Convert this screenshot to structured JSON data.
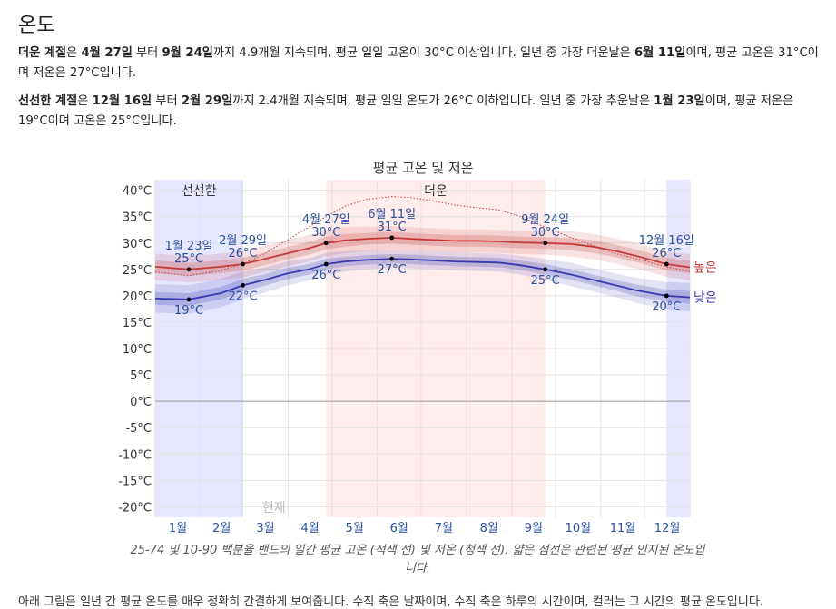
{
  "section": {
    "title": "온도",
    "hot_season": {
      "label": "더운 계절",
      "t1": "은 ",
      "start": "4월 27일",
      "t2": " 부터 ",
      "end": "9월 24일",
      "t3": "까지 4.9개월 지속되며, 평균 일일 고온이 30°C 이상입니다. 일년 중 가장 더운날은 ",
      "peak": "6월 11일",
      "t4": "이며, 평균 고온은 31°C이며 저온은 27°C입니다."
    },
    "cool_season": {
      "label": "선선한 계절",
      "t1": "은 ",
      "start": "12월 16일",
      "t2": " 부터 ",
      "end": "2월 29일",
      "t3": "까지 2.4개월 지속되며, 평균 일일 온도가 26°C 이하입니다. 일년 중 가장 추운날은 ",
      "peak": "1월 23일",
      "t4": "이며, 평균 저온은 19°C이며 고온은 25°C입니다."
    }
  },
  "chart_data": {
    "type": "line",
    "title": "평균 고온 및 저온",
    "x_unit": "day of year",
    "x_tick_labels": [
      "1월",
      "2월",
      "3월",
      "4월",
      "5월",
      "6월",
      "7월",
      "8월",
      "9월",
      "10월",
      "11월",
      "12월"
    ],
    "ylim": [
      -22,
      42
    ],
    "y_ticks": [
      40,
      35,
      30,
      25,
      20,
      15,
      10,
      5,
      0,
      -5,
      -10,
      -15,
      -20
    ],
    "y_tick_suffix": "°C",
    "grid": true,
    "bands": [
      {
        "name": "선선한",
        "ranges": [
          [
            0,
            60
          ],
          [
            350,
            366
          ]
        ],
        "color": "#e6e6ff"
      },
      {
        "name": "더운",
        "ranges": [
          [
            117,
            267
          ]
        ],
        "color": "#ffecec"
      }
    ],
    "series": [
      {
        "name": "높은",
        "color": "#c53a3a",
        "x": [
          0,
          23,
          45,
          60,
          75,
          90,
          105,
          117,
          130,
          145,
          162,
          175,
          190,
          205,
          220,
          235,
          250,
          267,
          285,
          300,
          315,
          330,
          350,
          366
        ],
        "values": [
          25.5,
          25,
          25.5,
          26,
          27,
          28,
          29,
          30,
          30.5,
          30.8,
          31,
          30.8,
          30.6,
          30.4,
          30.4,
          30.3,
          30.1,
          30,
          29.8,
          29.3,
          28.5,
          27.5,
          26,
          25.4
        ],
        "p25": [
          24.3,
          23.8,
          24.3,
          24.8,
          25.8,
          26.8,
          27.8,
          28.8,
          29.3,
          29.7,
          29.9,
          29.7,
          29.5,
          29.3,
          29.3,
          29.2,
          29.0,
          28.9,
          28.6,
          28.1,
          27.3,
          26.3,
          24.8,
          24.2
        ],
        "p75": [
          26.7,
          26.2,
          26.7,
          27.2,
          28.2,
          29.2,
          30.2,
          31.2,
          31.7,
          31.9,
          32.1,
          31.9,
          31.7,
          31.5,
          31.5,
          31.4,
          31.2,
          31.1,
          31.0,
          30.5,
          29.7,
          28.7,
          27.2,
          26.6
        ],
        "p10": [
          23.0,
          22.5,
          23.0,
          23.5,
          24.5,
          25.5,
          26.5,
          27.5,
          28.1,
          28.5,
          28.8,
          28.6,
          28.4,
          28.2,
          28.2,
          28.1,
          27.9,
          27.8,
          27.4,
          26.9,
          26.1,
          25.1,
          23.6,
          22.9
        ],
        "p90": [
          28.0,
          27.5,
          28.0,
          28.5,
          29.5,
          30.5,
          31.5,
          32.5,
          33.0,
          33.1,
          33.2,
          33.0,
          32.8,
          32.6,
          32.6,
          32.5,
          32.3,
          32.2,
          32.2,
          31.7,
          30.9,
          29.9,
          28.4,
          27.9
        ]
      },
      {
        "name": "낮은",
        "color": "#3a3ab0",
        "x": [
          0,
          23,
          45,
          60,
          75,
          90,
          105,
          117,
          130,
          145,
          162,
          175,
          190,
          205,
          220,
          235,
          250,
          267,
          285,
          300,
          315,
          330,
          350,
          366
        ],
        "values": [
          19.5,
          19.3,
          20.5,
          22,
          23,
          24.2,
          25,
          26,
          26.5,
          26.8,
          27,
          26.9,
          26.7,
          26.5,
          26.4,
          26.3,
          25.8,
          25,
          24,
          23,
          22,
          21,
          20,
          19.7
        ],
        "p25": [
          18.3,
          18.1,
          19.3,
          20.8,
          21.9,
          23.1,
          24.0,
          25.0,
          25.6,
          25.9,
          26.1,
          26.0,
          25.8,
          25.6,
          25.5,
          25.4,
          24.9,
          24.0,
          23.0,
          22.0,
          21.0,
          19.9,
          18.8,
          18.5
        ],
        "p75": [
          20.7,
          20.5,
          21.7,
          23.2,
          24.1,
          25.3,
          26.0,
          27.0,
          27.4,
          27.7,
          27.9,
          27.8,
          27.6,
          27.4,
          27.3,
          27.2,
          26.7,
          26.0,
          25.0,
          24.0,
          23.0,
          22.1,
          21.2,
          20.9
        ],
        "p10": [
          16.8,
          16.6,
          17.8,
          19.4,
          20.6,
          21.9,
          22.9,
          23.9,
          24.6,
          25.0,
          25.3,
          25.2,
          25.0,
          24.8,
          24.7,
          24.6,
          24.0,
          23.0,
          21.8,
          20.8,
          19.8,
          18.6,
          17.4,
          17.0
        ],
        "p90": [
          22.2,
          22.0,
          23.2,
          24.6,
          25.4,
          26.5,
          27.1,
          28.1,
          28.4,
          28.6,
          28.7,
          28.6,
          28.4,
          28.2,
          28.1,
          28.0,
          27.6,
          27.0,
          26.2,
          25.2,
          24.2,
          23.4,
          22.6,
          22.4
        ]
      },
      {
        "name": "perceived",
        "style": "dotted",
        "color": "#c53a3a",
        "x": [
          0,
          23,
          45,
          60,
          75,
          90,
          105,
          117,
          130,
          145,
          162,
          175,
          190,
          205,
          220,
          235,
          250,
          267,
          285,
          300,
          315,
          330,
          350,
          366
        ],
        "values": [
          24.5,
          23.8,
          24.8,
          26,
          28,
          30.5,
          33,
          35,
          37,
          38.3,
          38.8,
          38.6,
          38,
          37.2,
          36.7,
          36.3,
          35,
          33,
          31,
          29.5,
          28,
          27,
          25.5,
          24.6
        ]
      }
    ],
    "annotations": [
      {
        "date": "1월 23일",
        "temp": "25°C",
        "x": 23,
        "y": 25,
        "pos": "above"
      },
      {
        "date": "1월 23일",
        "temp": "19°C",
        "x": 23,
        "y": 19.3,
        "pos": "below"
      },
      {
        "date": "2월 29일",
        "temp": "26°C",
        "x": 60,
        "y": 26,
        "pos": "above"
      },
      {
        "date": "2월 29일",
        "temp": "22°C",
        "x": 60,
        "y": 22,
        "pos": "below"
      },
      {
        "date": "4월 27일",
        "temp": "30°C",
        "x": 117,
        "y": 30,
        "pos": "above"
      },
      {
        "date": "4월 27일",
        "temp": "26°C",
        "x": 117,
        "y": 26,
        "pos": "below"
      },
      {
        "date": "6월 11일",
        "temp": "31°C",
        "x": 162,
        "y": 31,
        "pos": "above"
      },
      {
        "date": "6월 11일",
        "temp": "27°C",
        "x": 162,
        "y": 27,
        "pos": "below"
      },
      {
        "date": "9월 24일",
        "temp": "30°C",
        "x": 267,
        "y": 30,
        "pos": "above"
      },
      {
        "date": "9월 24일",
        "temp": "25°C",
        "x": 267,
        "y": 25,
        "pos": "below"
      },
      {
        "date": "12월 16일",
        "temp": "26°C",
        "x": 350,
        "y": 26,
        "pos": "above"
      },
      {
        "date": "12월 16일",
        "temp": "20°C",
        "x": 350,
        "y": 20,
        "pos": "below"
      }
    ],
    "now_label": "현재",
    "now_x": 72
  },
  "caption": "25-74 및 10-90 백분율 밴드의 일간 평균 고온 (적색 선) 및 저온 (청색 선). 얇은 점선은 관련된 평균 인지된 온도입니다.",
  "cutoff_text": "아래 그림은 일년 간 평균 온도를 매우 정확히 간결하게 보여줍니다. 수직 축은 날짜이며, 수직 축은 하루의 시간이며, 컬러는 그 시간의 평균 온도입니다."
}
